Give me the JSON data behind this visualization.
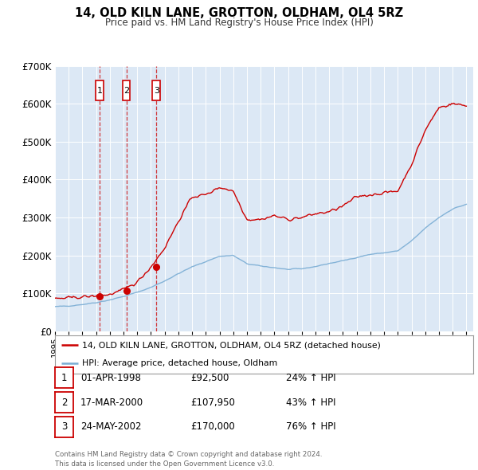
{
  "title": "14, OLD KILN LANE, GROTTON, OLDHAM, OL4 5RZ",
  "subtitle": "Price paid vs. HM Land Registry's House Price Index (HPI)",
  "background_color": "#ffffff",
  "plot_bg_color": "#dce8f5",
  "grid_color": "#ffffff",
  "sale_color": "#cc0000",
  "hpi_color": "#7aadd4",
  "ylim": [
    0,
    700000
  ],
  "yticks": [
    0,
    100000,
    200000,
    300000,
    400000,
    500000,
    600000,
    700000
  ],
  "ytick_labels": [
    "£0",
    "£100K",
    "£200K",
    "£300K",
    "£400K",
    "£500K",
    "£600K",
    "£700K"
  ],
  "xlim_start": 1995.0,
  "xlim_end": 2025.5,
  "sale_points": [
    {
      "year": 1998.25,
      "price": 92500,
      "label": "1"
    },
    {
      "year": 2000.21,
      "price": 107950,
      "label": "2"
    },
    {
      "year": 2002.39,
      "price": 170000,
      "label": "3"
    }
  ],
  "vline_years": [
    1998.25,
    2000.21,
    2002.39
  ],
  "legend_sale_label": "14, OLD KILN LANE, GROTTON, OLDHAM, OL4 5RZ (detached house)",
  "legend_hpi_label": "HPI: Average price, detached house, Oldham",
  "table_rows": [
    {
      "num": "1",
      "date": "01-APR-1998",
      "price": "£92,500",
      "hpi": "24% ↑ HPI"
    },
    {
      "num": "2",
      "date": "17-MAR-2000",
      "price": "£107,950",
      "hpi": "43% ↑ HPI"
    },
    {
      "num": "3",
      "date": "24-MAY-2002",
      "price": "£170,000",
      "hpi": "76% ↑ HPI"
    }
  ],
  "footer": "Contains HM Land Registry data © Crown copyright and database right 2024.\nThis data is licensed under the Open Government Licence v3.0.",
  "hpi_base_values": [
    65000,
    67000,
    71000,
    76000,
    83000,
    92000,
    103000,
    116000,
    133000,
    152000,
    170000,
    184000,
    198000,
    200000,
    178000,
    172000,
    168000,
    163000,
    165000,
    171000,
    179000,
    186000,
    195000,
    203000,
    207000,
    212000,
    238000,
    272000,
    300000,
    323000,
    335000
  ],
  "sale_base_values": [
    86000,
    88000,
    91000,
    93000,
    97000,
    110000,
    130000,
    170000,
    220000,
    290000,
    355000,
    360000,
    380000,
    370000,
    295000,
    295000,
    305000,
    295000,
    300000,
    310000,
    315000,
    330000,
    355000,
    360000,
    365000,
    370000,
    440000,
    530000,
    590000,
    600000,
    595000
  ]
}
